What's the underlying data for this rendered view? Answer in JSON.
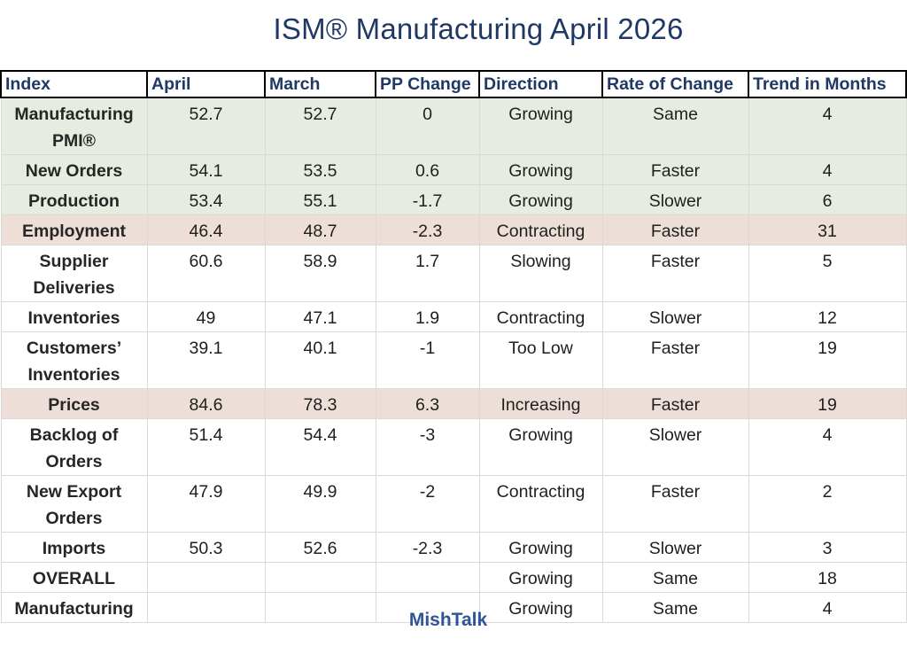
{
  "title": "ISM® Manufacturing April 2026",
  "columns": [
    "Index",
    "April",
    "March",
    "PP Change",
    "Direction",
    "Rate of Change",
    "Trend in Months"
  ],
  "rows": [
    {
      "index": "Manufacturing PMI®",
      "april": "52.7",
      "march": "52.7",
      "pp": "0",
      "direction": "Growing",
      "rate": "Same",
      "trend": "4",
      "highlight": "green",
      "tall": true
    },
    {
      "index": "New Orders",
      "april": "54.1",
      "march": "53.5",
      "pp": "0.6",
      "direction": "Growing",
      "rate": "Faster",
      "trend": "4",
      "highlight": "green",
      "tall": false
    },
    {
      "index": "Production",
      "april": "53.4",
      "march": "55.1",
      "pp": "-1.7",
      "direction": "Growing",
      "rate": "Slower",
      "trend": "6",
      "highlight": "green",
      "tall": false
    },
    {
      "index": "Employment",
      "april": "46.4",
      "march": "48.7",
      "pp": "-2.3",
      "direction": "Contracting",
      "rate": "Faster",
      "trend": "31",
      "highlight": "pink",
      "tall": false
    },
    {
      "index": "Supplier Deliveries",
      "april": "60.6",
      "march": "58.9",
      "pp": "1.7",
      "direction": "Slowing",
      "rate": "Faster",
      "trend": "5",
      "highlight": "none",
      "tall": true
    },
    {
      "index": "Inventories",
      "april": "49",
      "march": "47.1",
      "pp": "1.9",
      "direction": "Contracting",
      "rate": "Slower",
      "trend": "12",
      "highlight": "none",
      "tall": false
    },
    {
      "index": "Customers’ Inventories",
      "april": "39.1",
      "march": "40.1",
      "pp": "-1",
      "direction": "Too Low",
      "rate": "Faster",
      "trend": "19",
      "highlight": "none",
      "tall": true
    },
    {
      "index": "Prices",
      "april": "84.6",
      "march": "78.3",
      "pp": "6.3",
      "direction": "Increasing",
      "rate": "Faster",
      "trend": "19",
      "highlight": "pink",
      "tall": false
    },
    {
      "index": "Backlog of Orders",
      "april": "51.4",
      "march": "54.4",
      "pp": "-3",
      "direction": "Growing",
      "rate": "Slower",
      "trend": "4",
      "highlight": "none",
      "tall": true
    },
    {
      "index": "New Export Orders",
      "april": "47.9",
      "march": "49.9",
      "pp": "-2",
      "direction": "Contracting",
      "rate": "Faster",
      "trend": "2",
      "highlight": "none",
      "tall": true
    },
    {
      "index": "Imports",
      "april": "50.3",
      "march": "52.6",
      "pp": "-2.3",
      "direction": "Growing",
      "rate": "Slower",
      "trend": "3",
      "highlight": "none",
      "tall": false
    },
    {
      "index": "OVERALL",
      "april": "",
      "march": "",
      "pp": "",
      "direction": "Growing",
      "rate": "Same",
      "trend": "18",
      "highlight": "none",
      "tall": false
    },
    {
      "index": "Manufacturing",
      "april": "",
      "march": "",
      "pp": "",
      "direction": "Growing",
      "rate": "Same",
      "trend": "4",
      "highlight": "none",
      "tall": false
    }
  ],
  "footer": "MishTalk",
  "colors": {
    "title": "#1f3864",
    "header_text": "#1f3864",
    "green_row": "#e6ece1",
    "pink_row": "#eddfd7",
    "footer": "#2e5597"
  }
}
